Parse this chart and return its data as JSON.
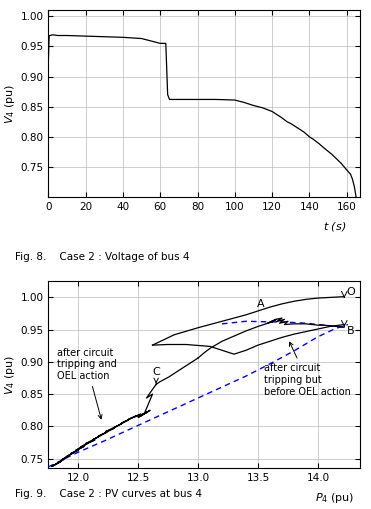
{
  "fig8": {
    "title": "Fig. 8.    Case 2 : Voltage of bus 4",
    "xlabel": "$t$ (s)",
    "ylabel": "$V_4$ (pu)",
    "xlim": [
      0,
      167
    ],
    "ylim": [
      0.7,
      1.01
    ],
    "xticks": [
      0,
      20,
      40,
      60,
      80,
      100,
      120,
      140,
      160
    ],
    "yticks": [
      0.75,
      0.8,
      0.85,
      0.9,
      0.95,
      1.0
    ],
    "t": [
      0,
      0.5,
      1,
      2,
      3,
      5,
      10,
      20,
      30,
      40,
      50,
      60,
      62,
      63,
      64,
      65,
      70,
      80,
      90,
      100,
      105,
      110,
      115,
      120,
      122,
      125,
      128,
      130,
      132,
      135,
      137,
      140,
      142,
      145,
      148,
      150,
      152,
      155,
      157,
      160,
      162,
      163,
      164,
      165
    ],
    "v": [
      0.92,
      0.968,
      0.968,
      0.969,
      0.969,
      0.968,
      0.968,
      0.967,
      0.966,
      0.965,
      0.963,
      0.955,
      0.955,
      0.955,
      0.87,
      0.862,
      0.862,
      0.862,
      0.862,
      0.861,
      0.857,
      0.852,
      0.848,
      0.842,
      0.838,
      0.832,
      0.825,
      0.822,
      0.818,
      0.812,
      0.808,
      0.8,
      0.796,
      0.789,
      0.781,
      0.776,
      0.771,
      0.762,
      0.756,
      0.745,
      0.738,
      0.73,
      0.718,
      0.7
    ]
  },
  "fig9": {
    "title": "Fig. 9.    Case 2 : PV curves at bus 4",
    "xlabel": "$P_4$ (pu)",
    "ylabel": "$V_4$ (pu)",
    "xlim": [
      11.75,
      14.35
    ],
    "ylim": [
      0.735,
      1.025
    ],
    "xticks": [
      12,
      12.5,
      13,
      13.5,
      14
    ],
    "yticks": [
      0.75,
      0.8,
      0.85,
      0.9,
      0.95,
      1.0
    ],
    "grid_color": "#bbbbbb"
  }
}
